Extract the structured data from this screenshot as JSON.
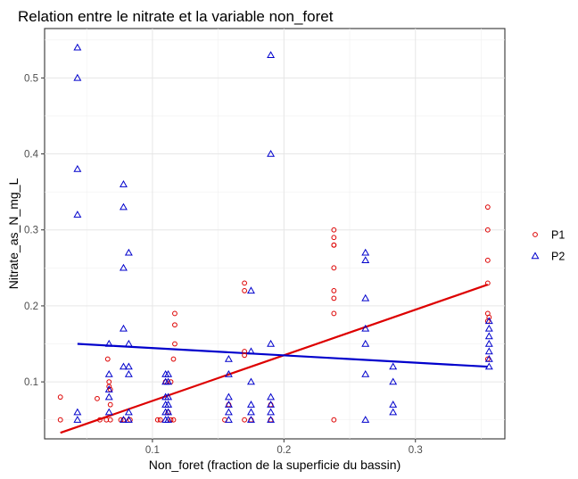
{
  "chart_data": {
    "type": "scatter",
    "title": "Relation entre le nitrate et la variable non_foret",
    "xlabel": "Non_foret (fraction de la superficie du bassin)",
    "ylabel": "Nitrate_as_N_mg_L",
    "xlim": [
      0.018,
      0.368
    ],
    "ylim": [
      0.025,
      0.565
    ],
    "x_ticks": [
      0.1,
      0.2,
      0.3
    ],
    "x_tick_labels": [
      "0.1",
      "0.2",
      "0.3"
    ],
    "y_ticks": [
      0.1,
      0.2,
      0.3,
      0.4,
      0.5
    ],
    "y_tick_labels": [
      "0.1",
      "0.2",
      "0.3",
      "0.4",
      "0.5"
    ],
    "grid": true,
    "legend_position": "right",
    "series": [
      {
        "name": "P1",
        "marker": "circle",
        "color": "#dd0000",
        "points": [
          [
            0.03,
            0.08
          ],
          [
            0.03,
            0.05
          ],
          [
            0.058,
            0.078
          ],
          [
            0.06,
            0.05
          ],
          [
            0.065,
            0.05
          ],
          [
            0.066,
            0.13
          ],
          [
            0.067,
            0.1
          ],
          [
            0.067,
            0.094
          ],
          [
            0.068,
            0.09
          ],
          [
            0.068,
            0.07
          ],
          [
            0.068,
            0.05
          ],
          [
            0.076,
            0.05
          ],
          [
            0.078,
            0.05
          ],
          [
            0.083,
            0.05
          ],
          [
            0.104,
            0.05
          ],
          [
            0.106,
            0.05
          ],
          [
            0.11,
            0.1
          ],
          [
            0.112,
            0.06
          ],
          [
            0.114,
            0.1
          ],
          [
            0.114,
            0.05
          ],
          [
            0.116,
            0.13
          ],
          [
            0.116,
            0.05
          ],
          [
            0.117,
            0.19
          ],
          [
            0.117,
            0.175
          ],
          [
            0.117,
            0.15
          ],
          [
            0.155,
            0.05
          ],
          [
            0.158,
            0.07
          ],
          [
            0.17,
            0.23
          ],
          [
            0.17,
            0.22
          ],
          [
            0.17,
            0.14
          ],
          [
            0.17,
            0.135
          ],
          [
            0.17,
            0.05
          ],
          [
            0.175,
            0.05
          ],
          [
            0.19,
            0.07
          ],
          [
            0.19,
            0.05
          ],
          [
            0.238,
            0.3
          ],
          [
            0.238,
            0.29
          ],
          [
            0.238,
            0.28
          ],
          [
            0.238,
            0.28
          ],
          [
            0.238,
            0.25
          ],
          [
            0.238,
            0.22
          ],
          [
            0.238,
            0.21
          ],
          [
            0.238,
            0.19
          ],
          [
            0.238,
            0.05
          ],
          [
            0.355,
            0.33
          ],
          [
            0.355,
            0.3
          ],
          [
            0.355,
            0.26
          ],
          [
            0.355,
            0.23
          ],
          [
            0.355,
            0.19
          ],
          [
            0.355,
            0.18
          ],
          [
            0.355,
            0.13
          ],
          [
            0.356,
            0.185
          ]
        ],
        "fit": {
          "x": [
            0.03,
            0.355
          ],
          "y": [
            0.033,
            0.228
          ]
        }
      },
      {
        "name": "P2",
        "marker": "triangle",
        "color": "#0000cc",
        "points": [
          [
            0.043,
            0.54
          ],
          [
            0.043,
            0.5
          ],
          [
            0.043,
            0.38
          ],
          [
            0.043,
            0.32
          ],
          [
            0.043,
            0.06
          ],
          [
            0.043,
            0.05
          ],
          [
            0.067,
            0.15
          ],
          [
            0.067,
            0.11
          ],
          [
            0.067,
            0.09
          ],
          [
            0.067,
            0.08
          ],
          [
            0.067,
            0.06
          ],
          [
            0.078,
            0.36
          ],
          [
            0.078,
            0.33
          ],
          [
            0.078,
            0.25
          ],
          [
            0.078,
            0.17
          ],
          [
            0.078,
            0.12
          ],
          [
            0.078,
            0.05
          ],
          [
            0.082,
            0.27
          ],
          [
            0.082,
            0.15
          ],
          [
            0.082,
            0.12
          ],
          [
            0.082,
            0.11
          ],
          [
            0.082,
            0.06
          ],
          [
            0.082,
            0.05
          ],
          [
            0.11,
            0.11
          ],
          [
            0.11,
            0.1
          ],
          [
            0.11,
            0.08
          ],
          [
            0.11,
            0.07
          ],
          [
            0.11,
            0.06
          ],
          [
            0.11,
            0.05
          ],
          [
            0.112,
            0.11
          ],
          [
            0.112,
            0.1
          ],
          [
            0.112,
            0.08
          ],
          [
            0.112,
            0.07
          ],
          [
            0.112,
            0.06
          ],
          [
            0.112,
            0.05
          ],
          [
            0.158,
            0.13
          ],
          [
            0.158,
            0.11
          ],
          [
            0.158,
            0.08
          ],
          [
            0.158,
            0.07
          ],
          [
            0.158,
            0.06
          ],
          [
            0.158,
            0.05
          ],
          [
            0.175,
            0.22
          ],
          [
            0.175,
            0.14
          ],
          [
            0.175,
            0.1
          ],
          [
            0.175,
            0.07
          ],
          [
            0.175,
            0.06
          ],
          [
            0.175,
            0.05
          ],
          [
            0.19,
            0.53
          ],
          [
            0.19,
            0.4
          ],
          [
            0.19,
            0.15
          ],
          [
            0.19,
            0.08
          ],
          [
            0.19,
            0.07
          ],
          [
            0.19,
            0.06
          ],
          [
            0.19,
            0.05
          ],
          [
            0.262,
            0.27
          ],
          [
            0.262,
            0.26
          ],
          [
            0.262,
            0.21
          ],
          [
            0.262,
            0.17
          ],
          [
            0.262,
            0.15
          ],
          [
            0.262,
            0.11
          ],
          [
            0.262,
            0.05
          ],
          [
            0.283,
            0.12
          ],
          [
            0.283,
            0.1
          ],
          [
            0.283,
            0.07
          ],
          [
            0.283,
            0.06
          ],
          [
            0.356,
            0.18
          ],
          [
            0.356,
            0.17
          ],
          [
            0.356,
            0.16
          ],
          [
            0.356,
            0.15
          ],
          [
            0.356,
            0.14
          ],
          [
            0.356,
            0.13
          ],
          [
            0.356,
            0.12
          ]
        ],
        "fit": {
          "x": [
            0.043,
            0.355
          ],
          "y": [
            0.15,
            0.12
          ]
        }
      }
    ]
  }
}
